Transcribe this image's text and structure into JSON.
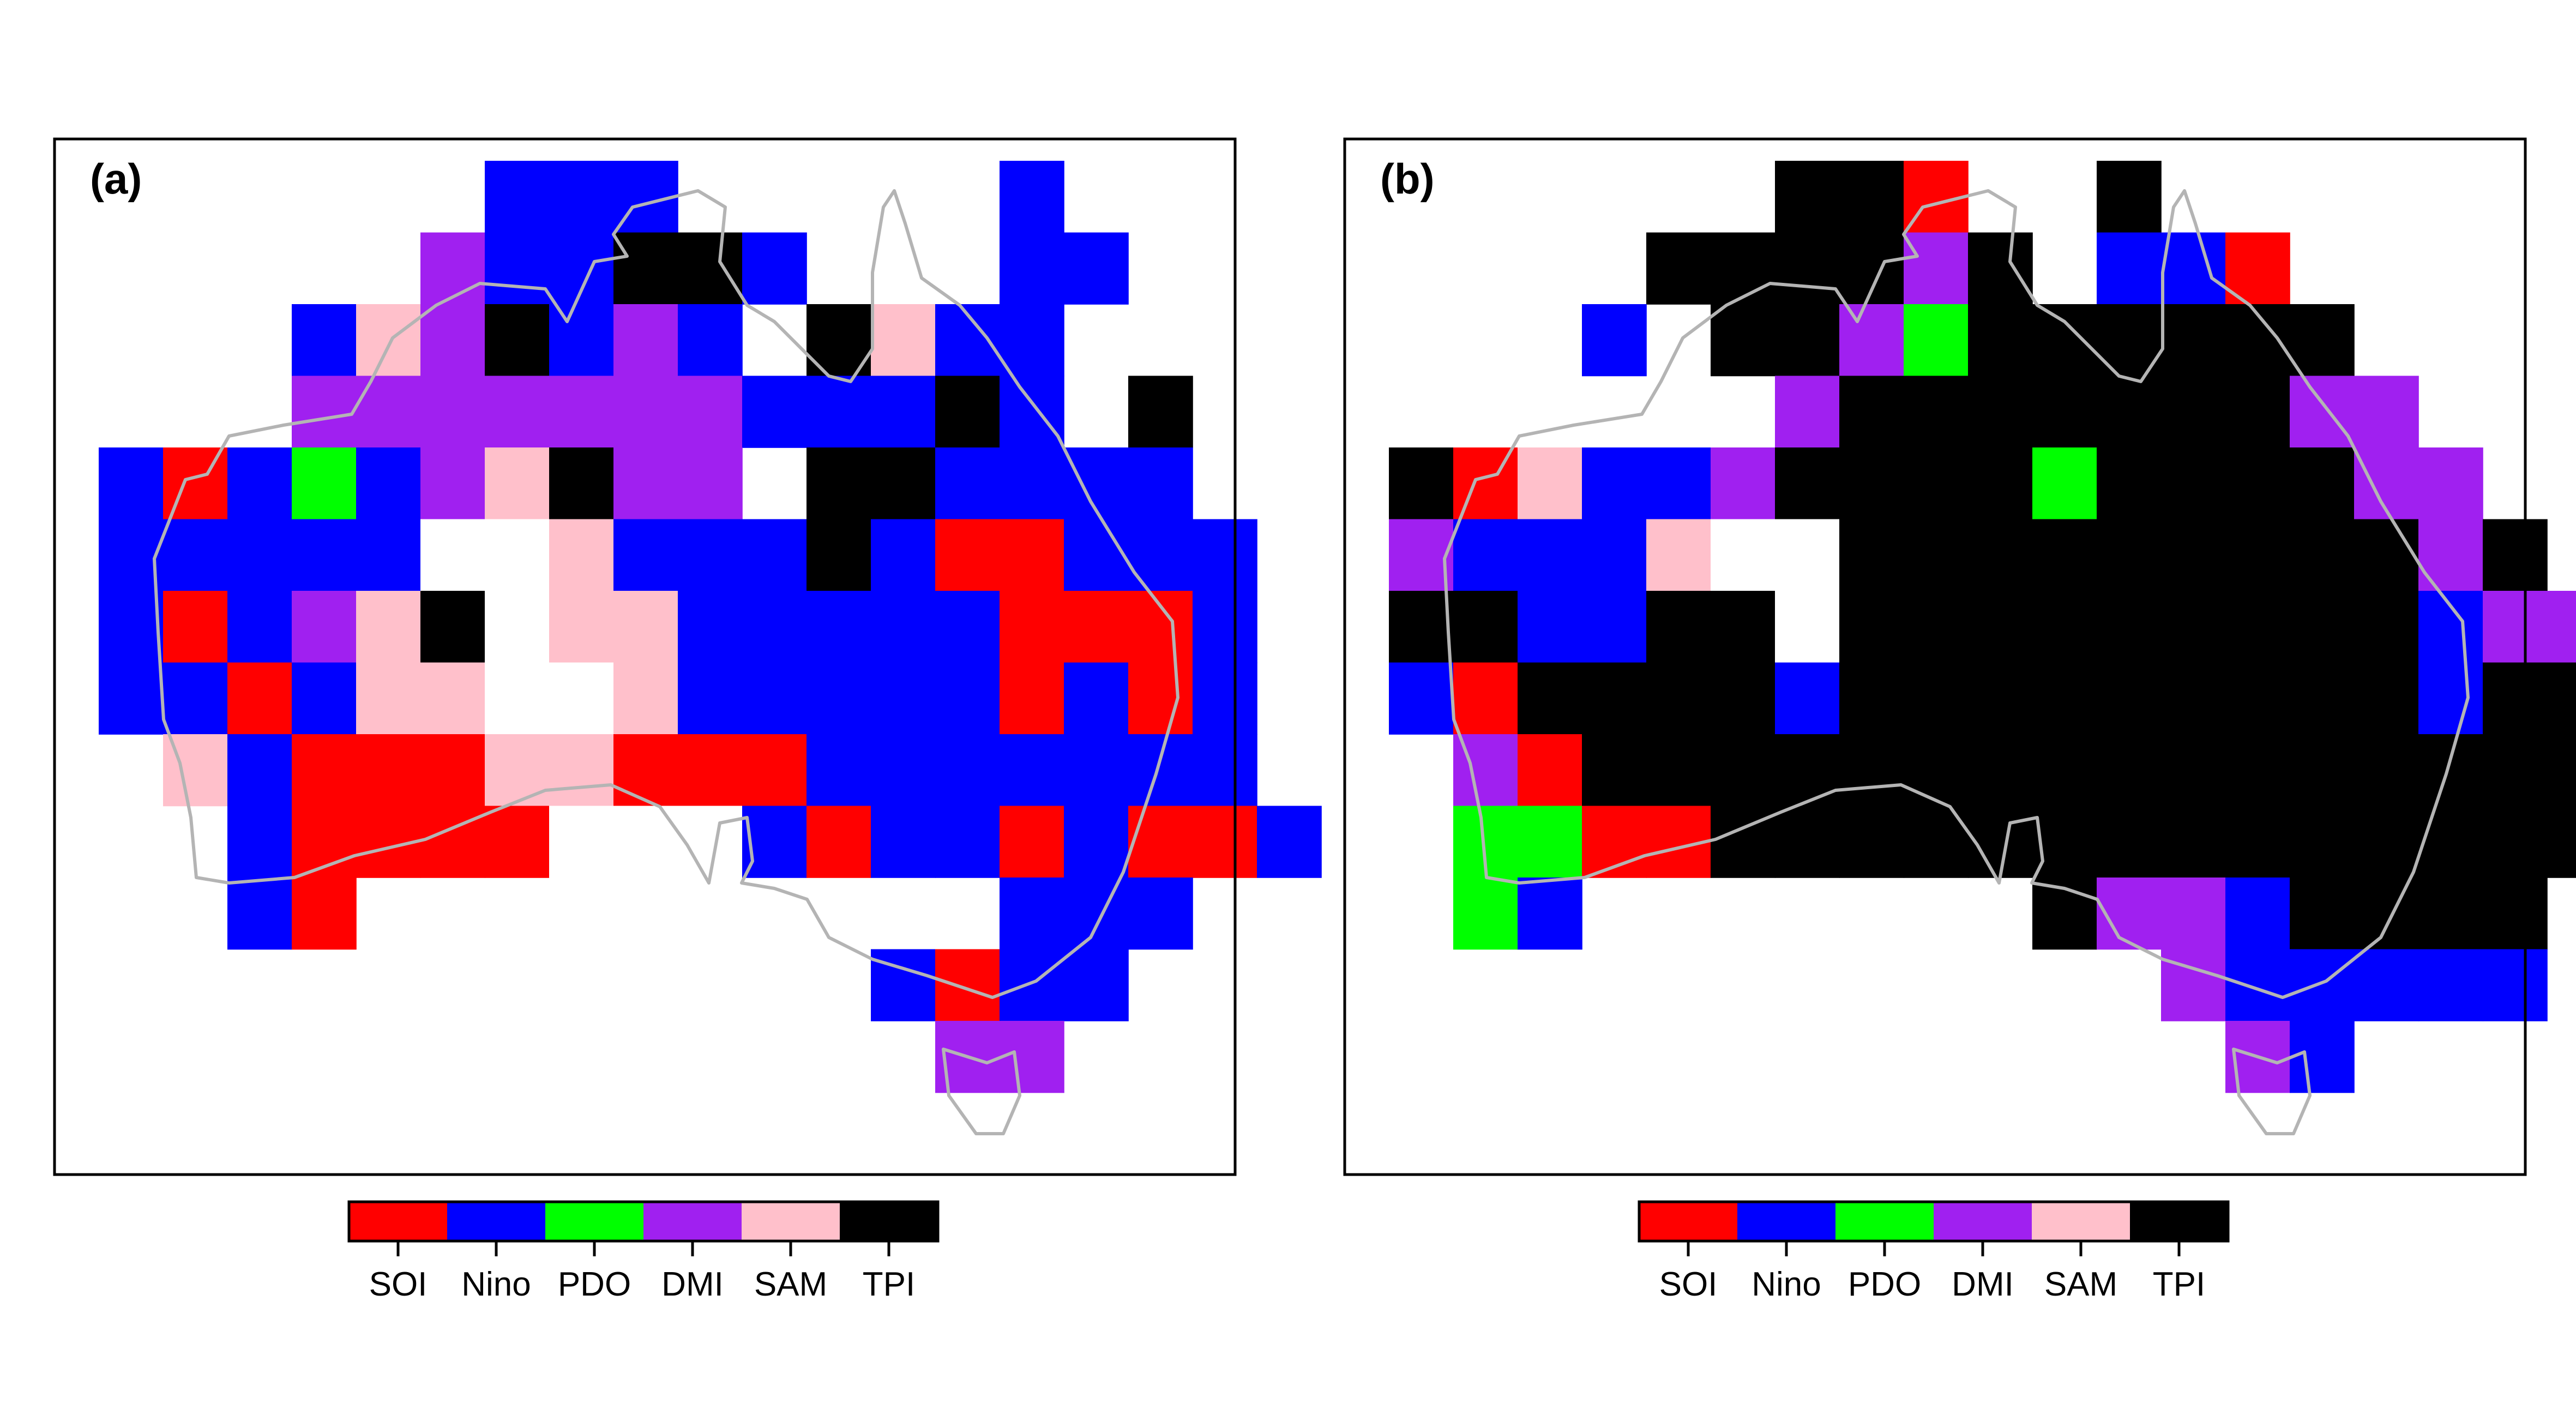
{
  "colors": {
    "SOI": "#ff0000",
    "Nino": "#0000ff",
    "PDO": "#00ff00",
    "DMI": "#a020f0",
    "SAM": "#ffc0cb",
    "TPI": "#000000",
    "coastline": "#b4b4b4"
  },
  "legend": {
    "categories": [
      "SOI",
      "Nino",
      "PDO",
      "DMI",
      "SAM",
      "TPI"
    ]
  },
  "panels": [
    {
      "label": "(a)",
      "grid": [
        ".......NNN.....N....",
        "......DNNKKN...NN...",
        "....NSDKNDN.KSNN....",
        "....DDDDDDDNNNKN.K..",
        ".NRNGNDSKDD.KKNNNN..",
        ".NNNNNWWSNNNKNRRNNN.",
        ".NRNDSKWSSNNNNNRRRN.",
        ".NNRNSSWWSNNNNNRNRN.",
        "..SNRRRSSRRRNNNNNNN.",
        "...NRRRRWWWNRNNRNRRN",
        "...NR..........NNN..",
        ".............NRNN...",
        "..............DD...."
      ]
    },
    {
      "label": "(b)",
      "grid": [
        ".......KKR..K.......",
        ".....KKKKDK.NNR.....",
        "....N.KKDGKKKKKK....",
        ".......DKKKKKKKDD...",
        ".KRSNNDKKKKGKKKKDD..",
        ".DNNNSWWKKKKKKKKKDK.",
        ".KKNNKKWKKKKKKKKKNDD",
        ".NRKKKKNKKKKKKKKKNKK",
        "..DRKKKKKKKKKKKKKKKK",
        "..GGRRKKKKKKKKKKKKKK",
        "..GN.......KDDNKKKK.",
        ".............DNNNNN.",
        "..............DN...."
      ]
    }
  ]
}
